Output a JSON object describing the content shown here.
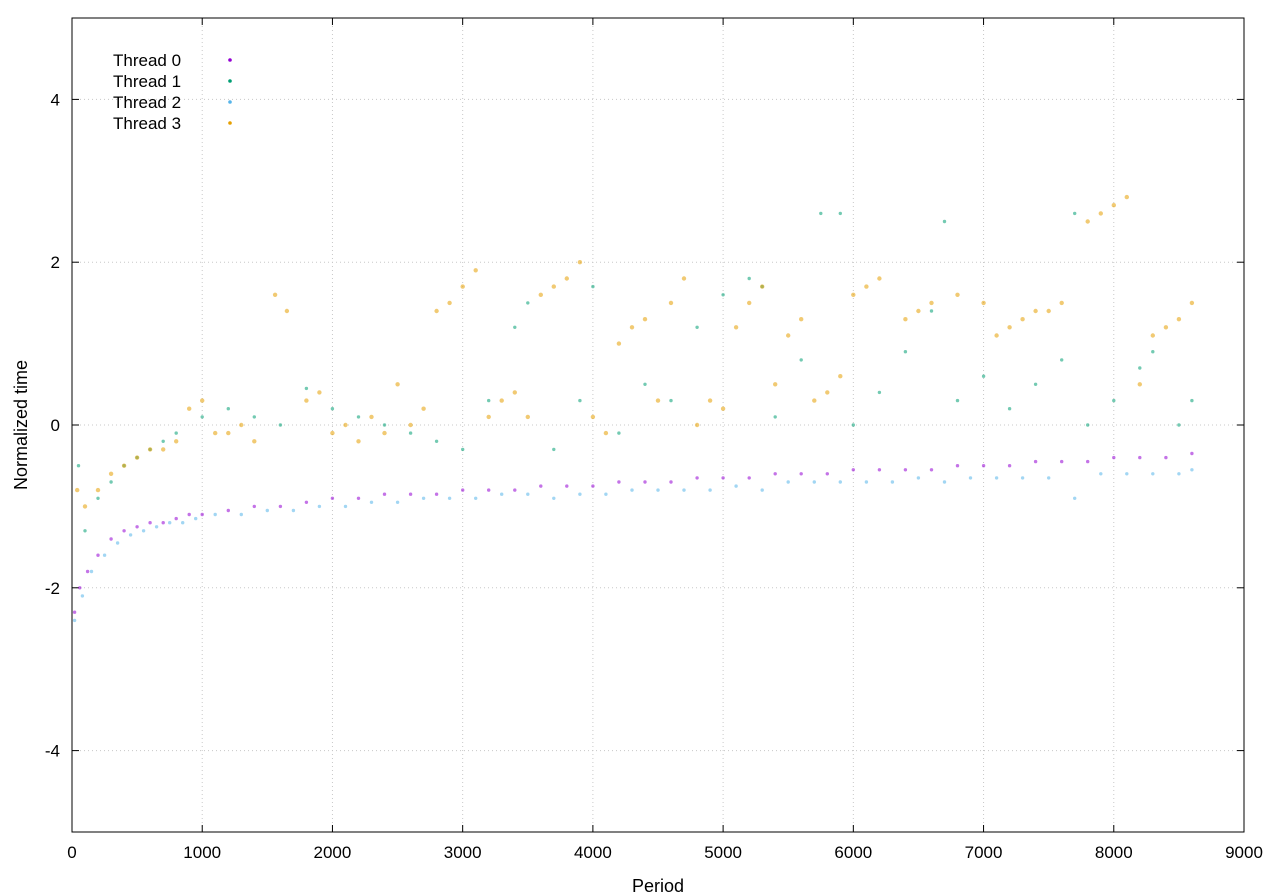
{
  "chart_data": {
    "type": "scatter",
    "title": "",
    "xlabel": "Period",
    "ylabel": "Normalized time",
    "xlim": [
      0,
      9000
    ],
    "ylim": [
      -5,
      5
    ],
    "x_ticks": [
      0,
      1000,
      2000,
      3000,
      4000,
      5000,
      6000,
      7000,
      8000,
      9000
    ],
    "y_ticks": [
      -4,
      -2,
      0,
      2,
      4
    ],
    "grid": true,
    "legend_position": "top-left",
    "series": [
      {
        "name": "Thread 0",
        "color": "#9400d3",
        "points": [
          [
            20,
            -2.3
          ],
          [
            60,
            -2.0
          ],
          [
            120,
            -1.8
          ],
          [
            200,
            -1.6
          ],
          [
            300,
            -1.4
          ],
          [
            400,
            -1.3
          ],
          [
            500,
            -1.25
          ],
          [
            600,
            -1.2
          ],
          [
            700,
            -1.2
          ],
          [
            800,
            -1.15
          ],
          [
            900,
            -1.1
          ],
          [
            1000,
            -1.1
          ],
          [
            1200,
            -1.05
          ],
          [
            1400,
            -1.0
          ],
          [
            1600,
            -1.0
          ],
          [
            1800,
            -0.95
          ],
          [
            2000,
            -0.9
          ],
          [
            2200,
            -0.9
          ],
          [
            2400,
            -0.85
          ],
          [
            2600,
            -0.85
          ],
          [
            2800,
            -0.85
          ],
          [
            3000,
            -0.8
          ],
          [
            3200,
            -0.8
          ],
          [
            3400,
            -0.8
          ],
          [
            3600,
            -0.75
          ],
          [
            3800,
            -0.75
          ],
          [
            4000,
            -0.75
          ],
          [
            4200,
            -0.7
          ],
          [
            4400,
            -0.7
          ],
          [
            4600,
            -0.7
          ],
          [
            4800,
            -0.65
          ],
          [
            5000,
            -0.65
          ],
          [
            5200,
            -0.65
          ],
          [
            5400,
            -0.6
          ],
          [
            5600,
            -0.6
          ],
          [
            5800,
            -0.6
          ],
          [
            6000,
            -0.55
          ],
          [
            6200,
            -0.55
          ],
          [
            6400,
            -0.55
          ],
          [
            6600,
            -0.55
          ],
          [
            6800,
            -0.5
          ],
          [
            7000,
            -0.5
          ],
          [
            7200,
            -0.5
          ],
          [
            7400,
            -0.45
          ],
          [
            7600,
            -0.45
          ],
          [
            7800,
            -0.45
          ],
          [
            8000,
            -0.4
          ],
          [
            8200,
            -0.4
          ],
          [
            8400,
            -0.4
          ],
          [
            8600,
            -0.35
          ]
        ]
      },
      {
        "name": "Thread 1",
        "color": "#009e73",
        "points": [
          [
            50,
            -0.5
          ],
          [
            100,
            -1.3
          ],
          [
            200,
            -0.9
          ],
          [
            300,
            -0.7
          ],
          [
            400,
            -0.5
          ],
          [
            500,
            -0.4
          ],
          [
            600,
            -0.3
          ],
          [
            700,
            -0.2
          ],
          [
            800,
            -0.1
          ],
          [
            1000,
            0.1
          ],
          [
            1200,
            0.2
          ],
          [
            1400,
            0.1
          ],
          [
            1600,
            0.0
          ],
          [
            1800,
            0.45
          ],
          [
            2000,
            0.2
          ],
          [
            2200,
            0.1
          ],
          [
            2400,
            0.0
          ],
          [
            2600,
            -0.1
          ],
          [
            2800,
            -0.2
          ],
          [
            3000,
            -0.3
          ],
          [
            3200,
            0.3
          ],
          [
            3400,
            1.2
          ],
          [
            3500,
            1.5
          ],
          [
            3700,
            -0.3
          ],
          [
            3900,
            0.3
          ],
          [
            4000,
            1.7
          ],
          [
            4200,
            -0.1
          ],
          [
            4400,
            0.5
          ],
          [
            4600,
            0.3
          ],
          [
            4800,
            1.2
          ],
          [
            5000,
            1.6
          ],
          [
            5200,
            1.8
          ],
          [
            5300,
            1.7
          ],
          [
            5400,
            0.1
          ],
          [
            5600,
            0.8
          ],
          [
            5750,
            2.6
          ],
          [
            5900,
            2.6
          ],
          [
            6000,
            0.0
          ],
          [
            6200,
            0.4
          ],
          [
            6400,
            0.9
          ],
          [
            6600,
            1.4
          ],
          [
            6700,
            2.5
          ],
          [
            6800,
            0.3
          ],
          [
            7000,
            0.6
          ],
          [
            7200,
            0.2
          ],
          [
            7400,
            0.5
          ],
          [
            7600,
            0.8
          ],
          [
            7700,
            2.6
          ],
          [
            7800,
            0.0
          ],
          [
            8000,
            0.3
          ],
          [
            8200,
            0.7
          ],
          [
            8300,
            0.9
          ],
          [
            8500,
            0.0
          ],
          [
            8600,
            0.3
          ]
        ]
      },
      {
        "name": "Thread 2",
        "color": "#56b4e9",
        "points": [
          [
            20,
            -2.4
          ],
          [
            80,
            -2.1
          ],
          [
            150,
            -1.8
          ],
          [
            250,
            -1.6
          ],
          [
            350,
            -1.45
          ],
          [
            450,
            -1.35
          ],
          [
            550,
            -1.3
          ],
          [
            650,
            -1.25
          ],
          [
            750,
            -1.2
          ],
          [
            850,
            -1.2
          ],
          [
            950,
            -1.15
          ],
          [
            1100,
            -1.1
          ],
          [
            1300,
            -1.1
          ],
          [
            1500,
            -1.05
          ],
          [
            1700,
            -1.05
          ],
          [
            1900,
            -1.0
          ],
          [
            2100,
            -1.0
          ],
          [
            2300,
            -0.95
          ],
          [
            2500,
            -0.95
          ],
          [
            2700,
            -0.9
          ],
          [
            2900,
            -0.9
          ],
          [
            3100,
            -0.9
          ],
          [
            3300,
            -0.85
          ],
          [
            3500,
            -0.85
          ],
          [
            3700,
            -0.9
          ],
          [
            3900,
            -0.85
          ],
          [
            4100,
            -0.85
          ],
          [
            4300,
            -0.8
          ],
          [
            4500,
            -0.8
          ],
          [
            4700,
            -0.8
          ],
          [
            4900,
            -0.8
          ],
          [
            5100,
            -0.75
          ],
          [
            5300,
            -0.8
          ],
          [
            5500,
            -0.7
          ],
          [
            5700,
            -0.7
          ],
          [
            5900,
            -0.7
          ],
          [
            6100,
            -0.7
          ],
          [
            6300,
            -0.7
          ],
          [
            6500,
            -0.65
          ],
          [
            6700,
            -0.7
          ],
          [
            6900,
            -0.65
          ],
          [
            7100,
            -0.65
          ],
          [
            7300,
            -0.65
          ],
          [
            7500,
            -0.65
          ],
          [
            7700,
            -0.9
          ],
          [
            7900,
            -0.6
          ],
          [
            8100,
            -0.6
          ],
          [
            8300,
            -0.6
          ],
          [
            8500,
            -0.6
          ],
          [
            8600,
            -0.55
          ]
        ]
      },
      {
        "name": "Thread 3",
        "color": "#e69f00",
        "points": [
          [
            40,
            -0.8
          ],
          [
            100,
            -1.0
          ],
          [
            200,
            -0.8
          ],
          [
            300,
            -0.6
          ],
          [
            400,
            -0.5
          ],
          [
            500,
            -0.4
          ],
          [
            600,
            -0.3
          ],
          [
            700,
            -0.3
          ],
          [
            800,
            -0.2
          ],
          [
            900,
            0.2
          ],
          [
            1000,
            0.3
          ],
          [
            1100,
            -0.1
          ],
          [
            1200,
            -0.1
          ],
          [
            1300,
            0.0
          ],
          [
            1400,
            -0.2
          ],
          [
            1560,
            1.6
          ],
          [
            1650,
            1.4
          ],
          [
            1800,
            0.3
          ],
          [
            1900,
            0.4
          ],
          [
            2000,
            -0.1
          ],
          [
            2100,
            0.0
          ],
          [
            2200,
            -0.2
          ],
          [
            2300,
            0.1
          ],
          [
            2400,
            -0.1
          ],
          [
            2500,
            0.5
          ],
          [
            2600,
            0.0
          ],
          [
            2700,
            0.2
          ],
          [
            2800,
            1.4
          ],
          [
            2900,
            1.5
          ],
          [
            3000,
            1.7
          ],
          [
            3100,
            1.9
          ],
          [
            3200,
            0.1
          ],
          [
            3300,
            0.3
          ],
          [
            3400,
            0.4
          ],
          [
            3500,
            0.1
          ],
          [
            3600,
            1.6
          ],
          [
            3700,
            1.7
          ],
          [
            3800,
            1.8
          ],
          [
            3900,
            2.0
          ],
          [
            4000,
            0.1
          ],
          [
            4100,
            -0.1
          ],
          [
            4200,
            1.0
          ],
          [
            4300,
            1.2
          ],
          [
            4400,
            1.3
          ],
          [
            4500,
            0.3
          ],
          [
            4600,
            1.5
          ],
          [
            4700,
            1.8
          ],
          [
            4800,
            0.0
          ],
          [
            4900,
            0.3
          ],
          [
            5000,
            0.2
          ],
          [
            5100,
            1.2
          ],
          [
            5200,
            1.5
          ],
          [
            5300,
            1.7
          ],
          [
            5400,
            0.5
          ],
          [
            5500,
            1.1
          ],
          [
            5600,
            1.3
          ],
          [
            5700,
            0.3
          ],
          [
            5800,
            0.4
          ],
          [
            5900,
            0.6
          ],
          [
            6000,
            1.6
          ],
          [
            6100,
            1.7
          ],
          [
            6200,
            1.8
          ],
          [
            6400,
            1.3
          ],
          [
            6500,
            1.4
          ],
          [
            6600,
            1.5
          ],
          [
            6800,
            1.6
          ],
          [
            7000,
            1.5
          ],
          [
            7100,
            1.1
          ],
          [
            7200,
            1.2
          ],
          [
            7300,
            1.3
          ],
          [
            7400,
            1.4
          ],
          [
            7500,
            1.4
          ],
          [
            7600,
            1.5
          ],
          [
            7800,
            2.5
          ],
          [
            7900,
            2.6
          ],
          [
            8000,
            2.7
          ],
          [
            8100,
            2.8
          ],
          [
            8200,
            0.5
          ],
          [
            8300,
            1.1
          ],
          [
            8400,
            1.2
          ],
          [
            8500,
            1.3
          ],
          [
            8600,
            1.5
          ]
        ]
      }
    ]
  }
}
